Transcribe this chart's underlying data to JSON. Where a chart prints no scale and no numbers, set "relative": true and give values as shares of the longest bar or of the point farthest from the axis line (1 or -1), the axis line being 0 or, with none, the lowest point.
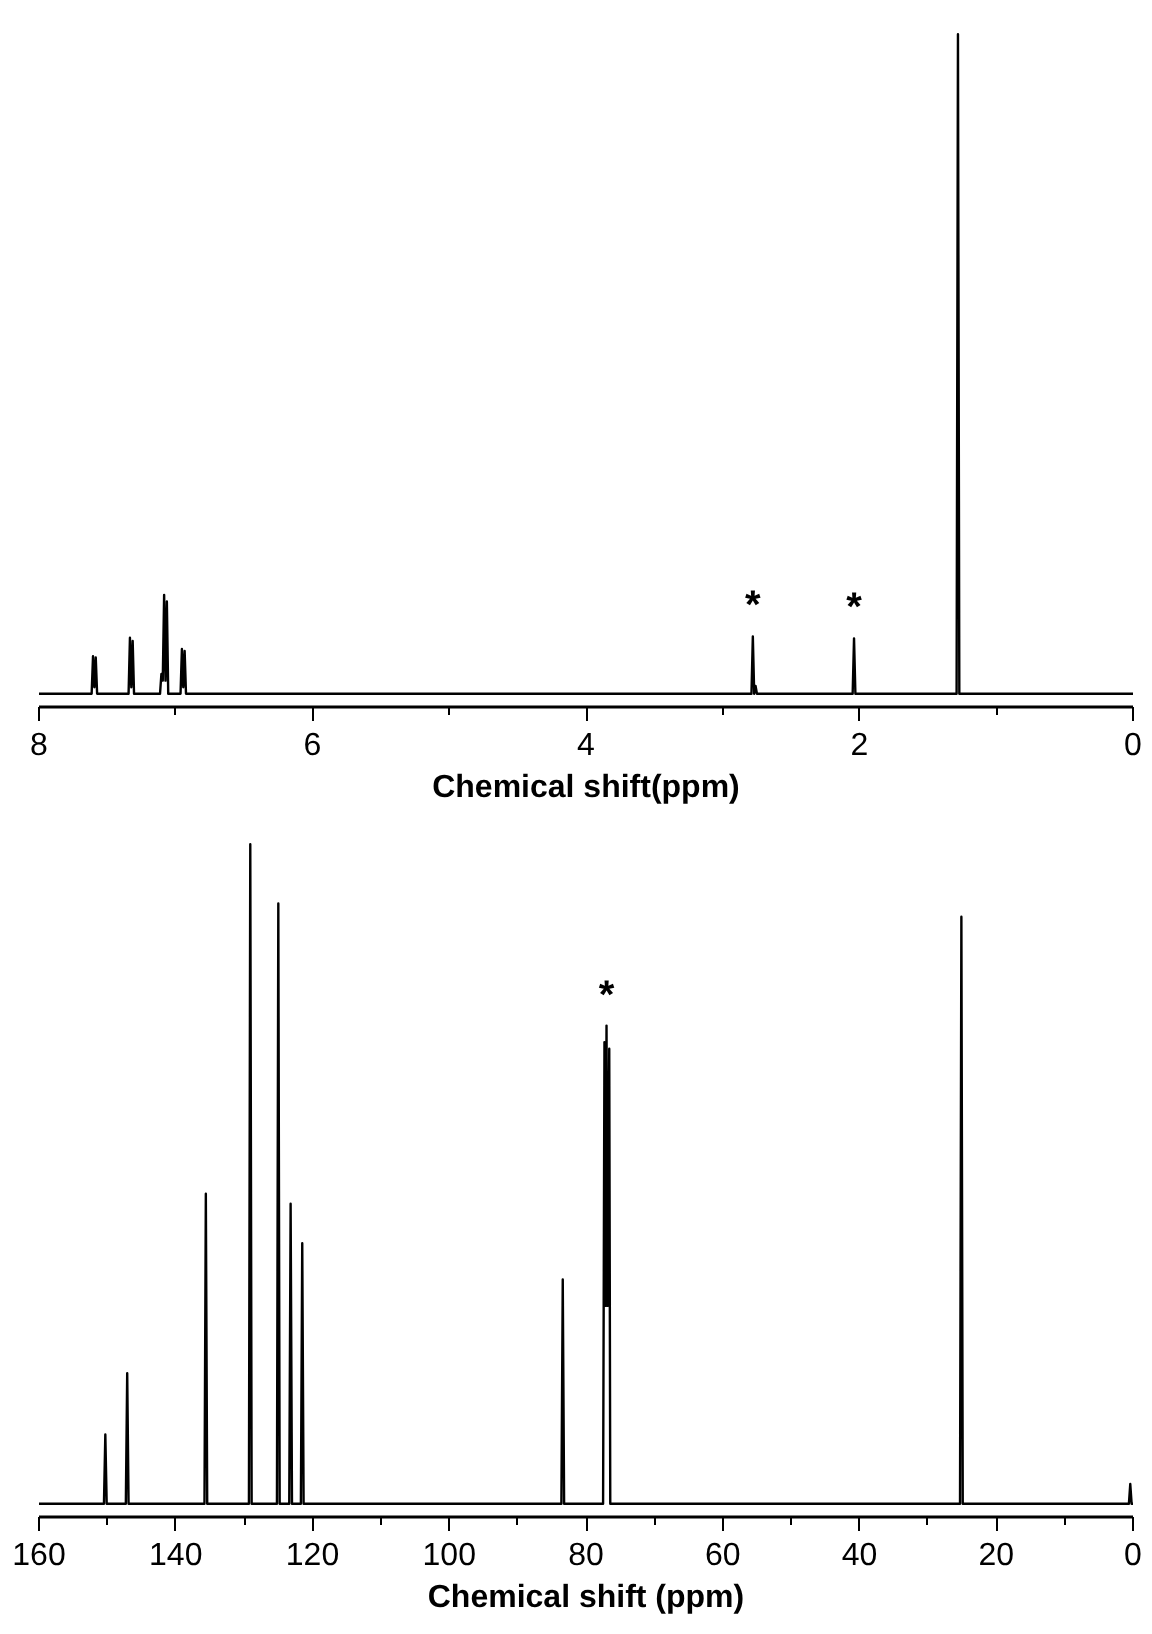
{
  "chart_data": [
    {
      "type": "line",
      "relative": true,
      "xlabel": "Chemical shift(ppm)",
      "xlim": [
        8,
        0
      ],
      "xticks": [
        8,
        6,
        4,
        2,
        0
      ],
      "grid": false,
      "marker": "none",
      "line_style": "solid",
      "series": [
        {
          "color": "#000000",
          "x": [
            8.0,
            7.615,
            7.605,
            7.595,
            7.585,
            7.575,
            7.345,
            7.335,
            7.325,
            7.315,
            7.305,
            7.115,
            7.105,
            7.095,
            7.085,
            7.075,
            7.065,
            7.055,
            6.965,
            6.955,
            6.945,
            6.935,
            6.925,
            2.79,
            2.78,
            2.77,
            2.76,
            2.75,
            2.05,
            2.04,
            2.03,
            1.29,
            1.28,
            1.27,
            0.0
          ],
          "values": [
            0,
            0,
            0.057,
            0.01,
            0.055,
            0,
            0,
            0.085,
            0.01,
            0.08,
            0,
            0,
            0.03,
            0.02,
            0.15,
            0.02,
            0.14,
            0,
            0,
            0.068,
            0.01,
            0.065,
            0,
            0,
            0.087,
            0,
            0.012,
            0,
            0,
            0.084,
            0,
            0,
            1.0,
            0,
            0
          ]
        }
      ],
      "annotations": [
        {
          "text": "*",
          "x": 2.78,
          "y": 0.087
        },
        {
          "text": "*",
          "x": 2.04,
          "y": 0.084
        }
      ]
    },
    {
      "type": "line",
      "relative": true,
      "xlabel": "Chemical shift (ppm)",
      "xlim": [
        160,
        0
      ],
      "xticks": [
        160,
        140,
        120,
        100,
        80,
        60,
        40,
        20,
        0
      ],
      "grid": false,
      "marker": "none",
      "line_style": "solid",
      "series": [
        {
          "color": "#000000",
          "x": [
            160,
            150.5,
            150.3,
            150.1,
            147.3,
            147.1,
            146.9,
            135.8,
            135.6,
            135.4,
            129.3,
            129.1,
            128.9,
            125.2,
            125.0,
            124.8,
            123.4,
            123.2,
            123.0,
            121.7,
            121.5,
            121.3,
            83.6,
            83.4,
            83.2,
            77.5,
            77.3,
            77.15,
            77.0,
            76.85,
            76.6,
            76.45,
            25.3,
            25.1,
            24.9,
            0.6,
            0.4,
            0.2,
            0
          ],
          "values": [
            0,
            0,
            0.105,
            0,
            0,
            0.198,
            0,
            0,
            0.47,
            0,
            0,
            1.0,
            0,
            0,
            0.91,
            0,
            0,
            0.455,
            0,
            0,
            0.395,
            0,
            0,
            0.34,
            0,
            0,
            0.7,
            0.3,
            0.725,
            0.3,
            0.69,
            0,
            0,
            0.89,
            0,
            0,
            0.03,
            0,
            0
          ]
        }
      ],
      "annotations": [
        {
          "text": "*",
          "x": 77.0,
          "y": 0.725
        }
      ]
    }
  ]
}
